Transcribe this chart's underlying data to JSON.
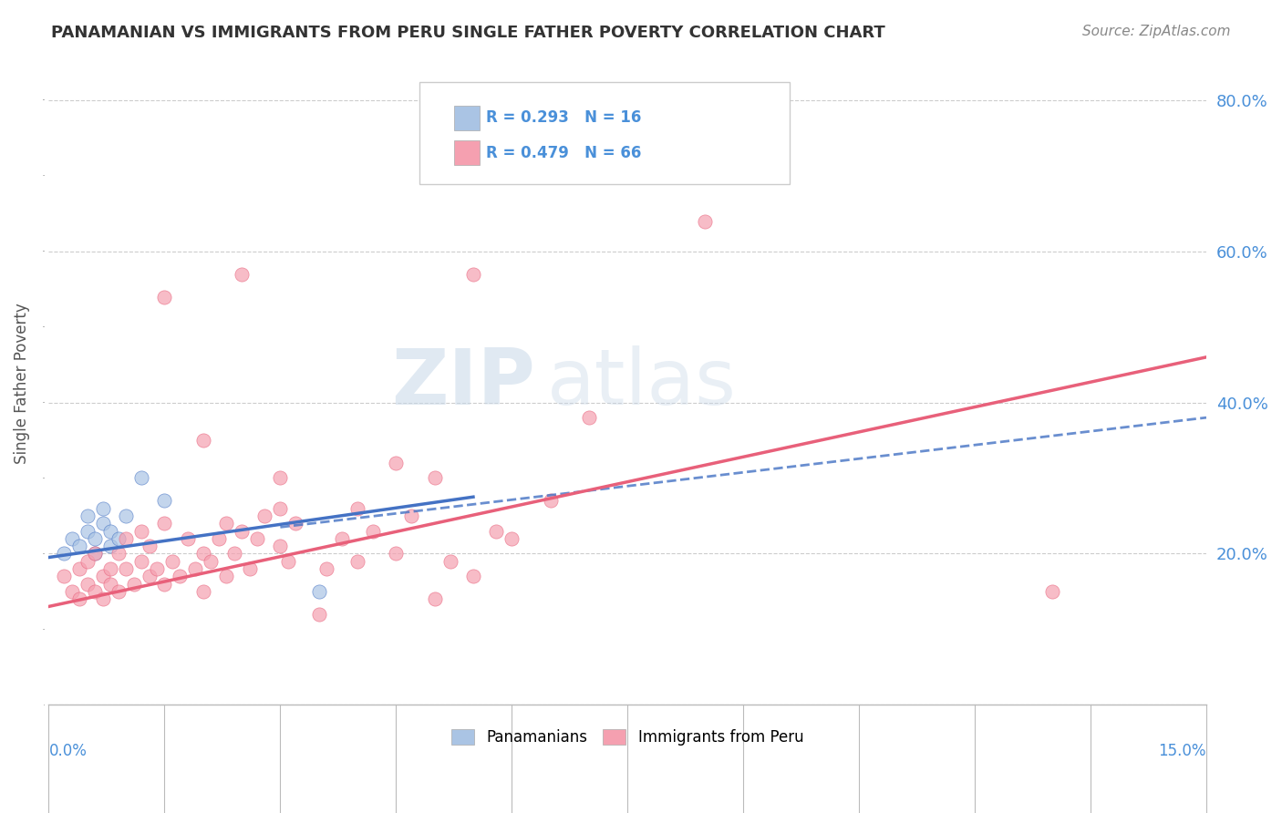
{
  "title": "PANAMANIAN VS IMMIGRANTS FROM PERU SINGLE FATHER POVERTY CORRELATION CHART",
  "source": "Source: ZipAtlas.com",
  "ylabel": "Single Father Poverty",
  "xlim": [
    0.0,
    15.0
  ],
  "ylim": [
    0.0,
    85.0
  ],
  "yticks": [
    0,
    20,
    40,
    60,
    80
  ],
  "ytick_labels": [
    "",
    "20.0%",
    "40.0%",
    "60.0%",
    "80.0%"
  ],
  "legend_label1": "Panamanians",
  "legend_label2": "Immigrants from Peru",
  "color_panama": "#aac4e4",
  "color_peru": "#f5a0b0",
  "color_panama_line": "#4472c4",
  "color_peru_line": "#e8607a",
  "background_color": "#ffffff",
  "panama_scatter": [
    [
      0.2,
      20
    ],
    [
      0.3,
      22
    ],
    [
      0.4,
      21
    ],
    [
      0.5,
      23
    ],
    [
      0.5,
      25
    ],
    [
      0.6,
      22
    ],
    [
      0.6,
      20
    ],
    [
      0.7,
      24
    ],
    [
      0.7,
      26
    ],
    [
      0.8,
      23
    ],
    [
      0.8,
      21
    ],
    [
      0.9,
      22
    ],
    [
      1.0,
      25
    ],
    [
      1.2,
      30
    ],
    [
      1.5,
      27
    ],
    [
      3.5,
      15
    ]
  ],
  "peru_scatter": [
    [
      0.2,
      17
    ],
    [
      0.3,
      15
    ],
    [
      0.4,
      18
    ],
    [
      0.4,
      14
    ],
    [
      0.5,
      16
    ],
    [
      0.5,
      19
    ],
    [
      0.6,
      15
    ],
    [
      0.6,
      20
    ],
    [
      0.7,
      17
    ],
    [
      0.7,
      14
    ],
    [
      0.8,
      18
    ],
    [
      0.8,
      16
    ],
    [
      0.9,
      20
    ],
    [
      0.9,
      15
    ],
    [
      1.0,
      18
    ],
    [
      1.0,
      22
    ],
    [
      1.1,
      16
    ],
    [
      1.2,
      19
    ],
    [
      1.2,
      23
    ],
    [
      1.3,
      17
    ],
    [
      1.3,
      21
    ],
    [
      1.4,
      18
    ],
    [
      1.5,
      16
    ],
    [
      1.5,
      24
    ],
    [
      1.6,
      19
    ],
    [
      1.7,
      17
    ],
    [
      1.8,
      22
    ],
    [
      1.9,
      18
    ],
    [
      2.0,
      20
    ],
    [
      2.0,
      15
    ],
    [
      2.1,
      19
    ],
    [
      2.2,
      22
    ],
    [
      2.3,
      17
    ],
    [
      2.3,
      24
    ],
    [
      2.4,
      20
    ],
    [
      2.5,
      23
    ],
    [
      2.6,
      18
    ],
    [
      2.7,
      22
    ],
    [
      2.8,
      25
    ],
    [
      3.0,
      21
    ],
    [
      3.0,
      26
    ],
    [
      3.1,
      19
    ],
    [
      3.2,
      24
    ],
    [
      3.5,
      12
    ],
    [
      3.6,
      18
    ],
    [
      3.8,
      22
    ],
    [
      4.0,
      26
    ],
    [
      4.0,
      19
    ],
    [
      4.2,
      23
    ],
    [
      4.5,
      20
    ],
    [
      4.7,
      25
    ],
    [
      5.0,
      30
    ],
    [
      5.0,
      14
    ],
    [
      5.2,
      19
    ],
    [
      5.5,
      17
    ],
    [
      5.8,
      23
    ],
    [
      6.0,
      22
    ],
    [
      1.5,
      54
    ],
    [
      2.5,
      57
    ],
    [
      4.5,
      32
    ],
    [
      5.5,
      57
    ],
    [
      7.0,
      38
    ],
    [
      8.5,
      64
    ],
    [
      2.0,
      35
    ],
    [
      3.0,
      30
    ],
    [
      6.5,
      27
    ],
    [
      13.0,
      15
    ]
  ],
  "panama_line": [
    [
      0.0,
      19.5
    ],
    [
      15.0,
      38.0
    ]
  ],
  "peru_line": [
    [
      0.0,
      13.0
    ],
    [
      15.0,
      46.0
    ]
  ]
}
